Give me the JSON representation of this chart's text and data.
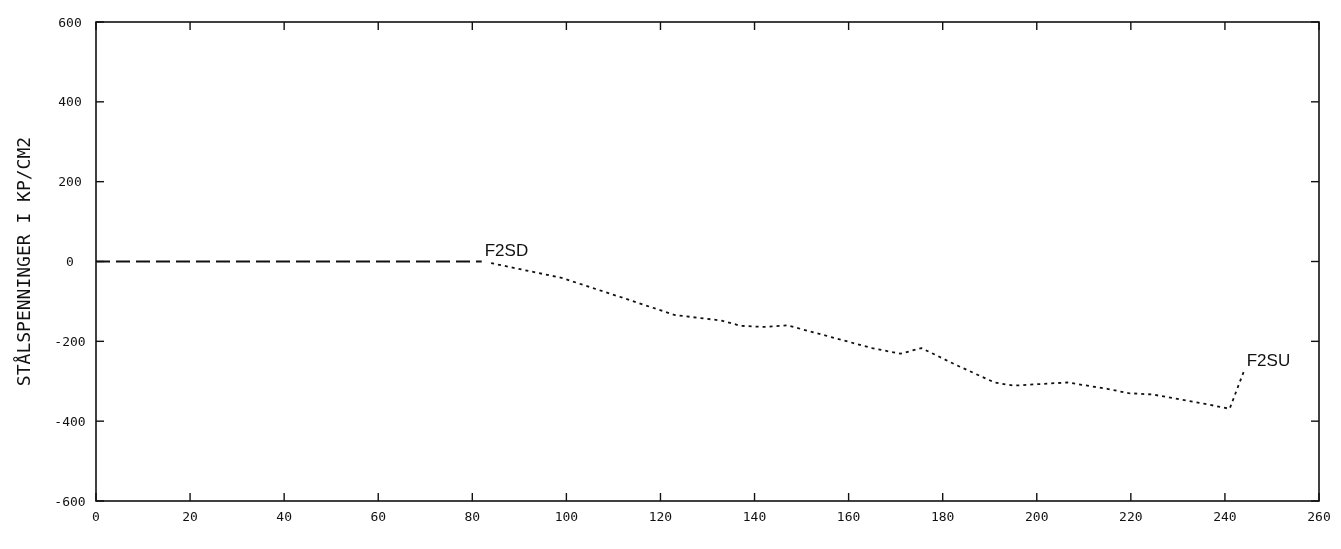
{
  "chart_data": {
    "type": "line",
    "ylabel": "STÅLSPENNINGER I KP/CM2",
    "xlim": [
      0,
      260
    ],
    "xticks": [
      0,
      20,
      40,
      60,
      80,
      100,
      120,
      140,
      160,
      180,
      200,
      220,
      240,
      260
    ],
    "ylim": [
      -600,
      600
    ],
    "yticks": [
      -600,
      -400,
      -200,
      0,
      200,
      400,
      600
    ],
    "grid": false,
    "legend": false,
    "series": [
      {
        "name": "F2SD",
        "color": "#111111",
        "line_style": "dashed",
        "x": [
          0,
          82
        ],
        "values": [
          0,
          0
        ]
      },
      {
        "name": "F2SU",
        "color": "#111111",
        "line_style": "dotted",
        "x": [
          84,
          99,
          112,
          123,
          133,
          137,
          142,
          147,
          156.5,
          165,
          171,
          175.5,
          183,
          191,
          195,
          206.5,
          215,
          219.5,
          224.5,
          235.5,
          241,
          244
        ],
        "values": [
          -4,
          -41,
          -91,
          -134,
          -148,
          -161,
          -164,
          -160,
          -190,
          -217,
          -231,
          -217,
          -260,
          -303,
          -311,
          -303,
          -319,
          -330,
          -333,
          -356,
          -369,
          -276
        ]
      }
    ]
  }
}
